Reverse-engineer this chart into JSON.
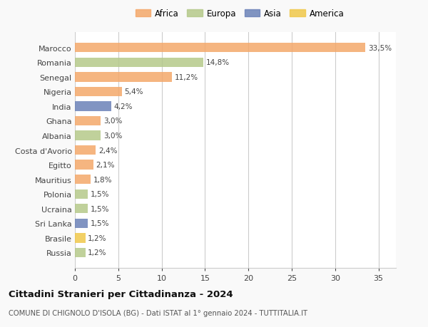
{
  "categories": [
    "Russia",
    "Brasile",
    "Sri Lanka",
    "Ucraina",
    "Polonia",
    "Mauritius",
    "Egitto",
    "Costa d'Avorio",
    "Albania",
    "Ghana",
    "India",
    "Nigeria",
    "Senegal",
    "Romania",
    "Marocco"
  ],
  "values": [
    1.2,
    1.2,
    1.5,
    1.5,
    1.5,
    1.8,
    2.1,
    2.4,
    3.0,
    3.0,
    4.2,
    5.4,
    11.2,
    14.8,
    33.5
  ],
  "labels": [
    "1,2%",
    "1,2%",
    "1,5%",
    "1,5%",
    "1,5%",
    "1,8%",
    "2,1%",
    "2,4%",
    "3,0%",
    "3,0%",
    "4,2%",
    "5,4%",
    "11,2%",
    "14,8%",
    "33,5%"
  ],
  "colors": [
    "#b5c98a",
    "#f0c84a",
    "#6b82b8",
    "#b5c98a",
    "#b5c98a",
    "#f4a86a",
    "#f4a86a",
    "#f4a86a",
    "#b5c98a",
    "#f4a86a",
    "#6b82b8",
    "#f4a86a",
    "#f4a86a",
    "#b5c98a",
    "#f4a86a"
  ],
  "continent_colors": {
    "Africa": "#f4a86a",
    "Europa": "#b5c98a",
    "Asia": "#6b82b8",
    "America": "#f0c84a"
  },
  "xlim": [
    0,
    37
  ],
  "xticks": [
    0,
    5,
    10,
    15,
    20,
    25,
    30,
    35
  ],
  "title": "Cittadini Stranieri per Cittadinanza - 2024",
  "subtitle": "COMUNE DI CHIGNOLO D'ISOLA (BG) - Dati ISTAT al 1° gennaio 2024 - TUTTITALIA.IT",
  "background_color": "#f9f9f9",
  "bar_background": "#ffffff",
  "grid_color": "#cccccc"
}
